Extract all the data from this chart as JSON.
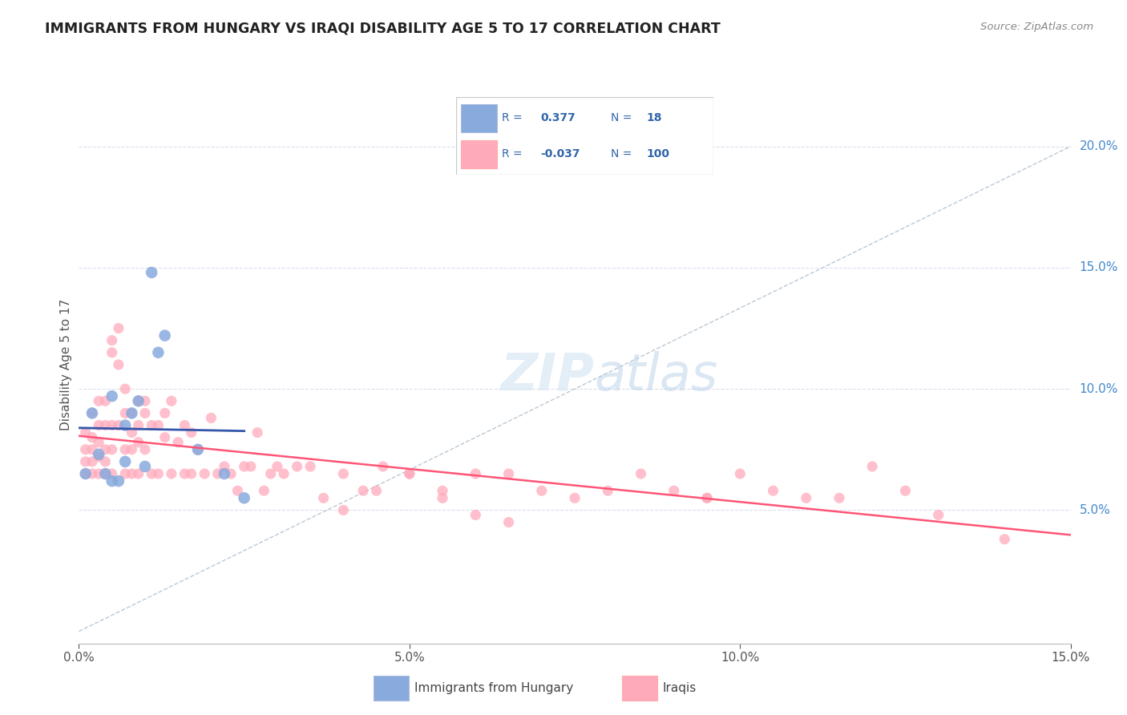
{
  "title": "IMMIGRANTS FROM HUNGARY VS IRAQI DISABILITY AGE 5 TO 17 CORRELATION CHART",
  "source": "Source: ZipAtlas.com",
  "ylabel": "Disability Age 5 to 17",
  "xlim": [
    0.0,
    0.15
  ],
  "ylim": [
    -0.005,
    0.225
  ],
  "xticks": [
    0.0,
    0.05,
    0.1,
    0.15
  ],
  "xticklabels": [
    "0.0%",
    "5.0%",
    "10.0%",
    "15.0%"
  ],
  "yticks_right": [
    0.05,
    0.1,
    0.15,
    0.2
  ],
  "ytick_right_labels": [
    "5.0%",
    "10.0%",
    "15.0%",
    "20.0%"
  ],
  "legend_blue_r": "0.377",
  "legend_blue_n": "18",
  "legend_pink_r": "-0.037",
  "legend_pink_n": "100",
  "blue_scatter_color": "#88AADD",
  "pink_scatter_color": "#FFAABB",
  "blue_line_color": "#3355AA",
  "pink_line_color": "#FF5577",
  "ref_line_color": "#AABBCC",
  "grid_color": "#DDDDEE",
  "watermark": "ZIPatlas",
  "blue_points_x": [
    0.001,
    0.002,
    0.003,
    0.004,
    0.005,
    0.005,
    0.006,
    0.007,
    0.007,
    0.008,
    0.009,
    0.01,
    0.011,
    0.012,
    0.013,
    0.018,
    0.022,
    0.025
  ],
  "blue_points_y": [
    0.065,
    0.09,
    0.073,
    0.065,
    0.097,
    0.062,
    0.062,
    0.07,
    0.085,
    0.09,
    0.095,
    0.068,
    0.148,
    0.115,
    0.122,
    0.075,
    0.065,
    0.055
  ],
  "pink_points_x": [
    0.001,
    0.001,
    0.001,
    0.001,
    0.002,
    0.002,
    0.002,
    0.002,
    0.002,
    0.003,
    0.003,
    0.003,
    0.003,
    0.003,
    0.004,
    0.004,
    0.004,
    0.004,
    0.004,
    0.005,
    0.005,
    0.005,
    0.005,
    0.005,
    0.006,
    0.006,
    0.006,
    0.007,
    0.007,
    0.007,
    0.007,
    0.008,
    0.008,
    0.008,
    0.008,
    0.009,
    0.009,
    0.009,
    0.009,
    0.01,
    0.01,
    0.01,
    0.011,
    0.011,
    0.012,
    0.012,
    0.013,
    0.013,
    0.014,
    0.014,
    0.015,
    0.016,
    0.016,
    0.017,
    0.017,
    0.018,
    0.019,
    0.02,
    0.021,
    0.022,
    0.023,
    0.024,
    0.025,
    0.026,
    0.027,
    0.028,
    0.029,
    0.03,
    0.031,
    0.033,
    0.035,
    0.037,
    0.04,
    0.043,
    0.046,
    0.05,
    0.055,
    0.06,
    0.065,
    0.07,
    0.075,
    0.08,
    0.085,
    0.09,
    0.095,
    0.1,
    0.105,
    0.11,
    0.115,
    0.12,
    0.125,
    0.13,
    0.04,
    0.045,
    0.05,
    0.055,
    0.06,
    0.065,
    0.095,
    0.14
  ],
  "pink_points_y": [
    0.082,
    0.075,
    0.07,
    0.065,
    0.09,
    0.08,
    0.075,
    0.07,
    0.065,
    0.095,
    0.085,
    0.078,
    0.072,
    0.065,
    0.095,
    0.085,
    0.075,
    0.07,
    0.065,
    0.12,
    0.115,
    0.085,
    0.075,
    0.065,
    0.125,
    0.11,
    0.085,
    0.1,
    0.09,
    0.075,
    0.065,
    0.09,
    0.082,
    0.075,
    0.065,
    0.095,
    0.085,
    0.078,
    0.065,
    0.095,
    0.09,
    0.075,
    0.085,
    0.065,
    0.085,
    0.065,
    0.09,
    0.08,
    0.095,
    0.065,
    0.078,
    0.085,
    0.065,
    0.082,
    0.065,
    0.075,
    0.065,
    0.088,
    0.065,
    0.068,
    0.065,
    0.058,
    0.068,
    0.068,
    0.082,
    0.058,
    0.065,
    0.068,
    0.065,
    0.068,
    0.068,
    0.055,
    0.065,
    0.058,
    0.068,
    0.065,
    0.058,
    0.065,
    0.065,
    0.058,
    0.055,
    0.058,
    0.065,
    0.058,
    0.055,
    0.065,
    0.058,
    0.055,
    0.055,
    0.068,
    0.058,
    0.048,
    0.05,
    0.058,
    0.065,
    0.055,
    0.048,
    0.045,
    0.055,
    0.038
  ]
}
